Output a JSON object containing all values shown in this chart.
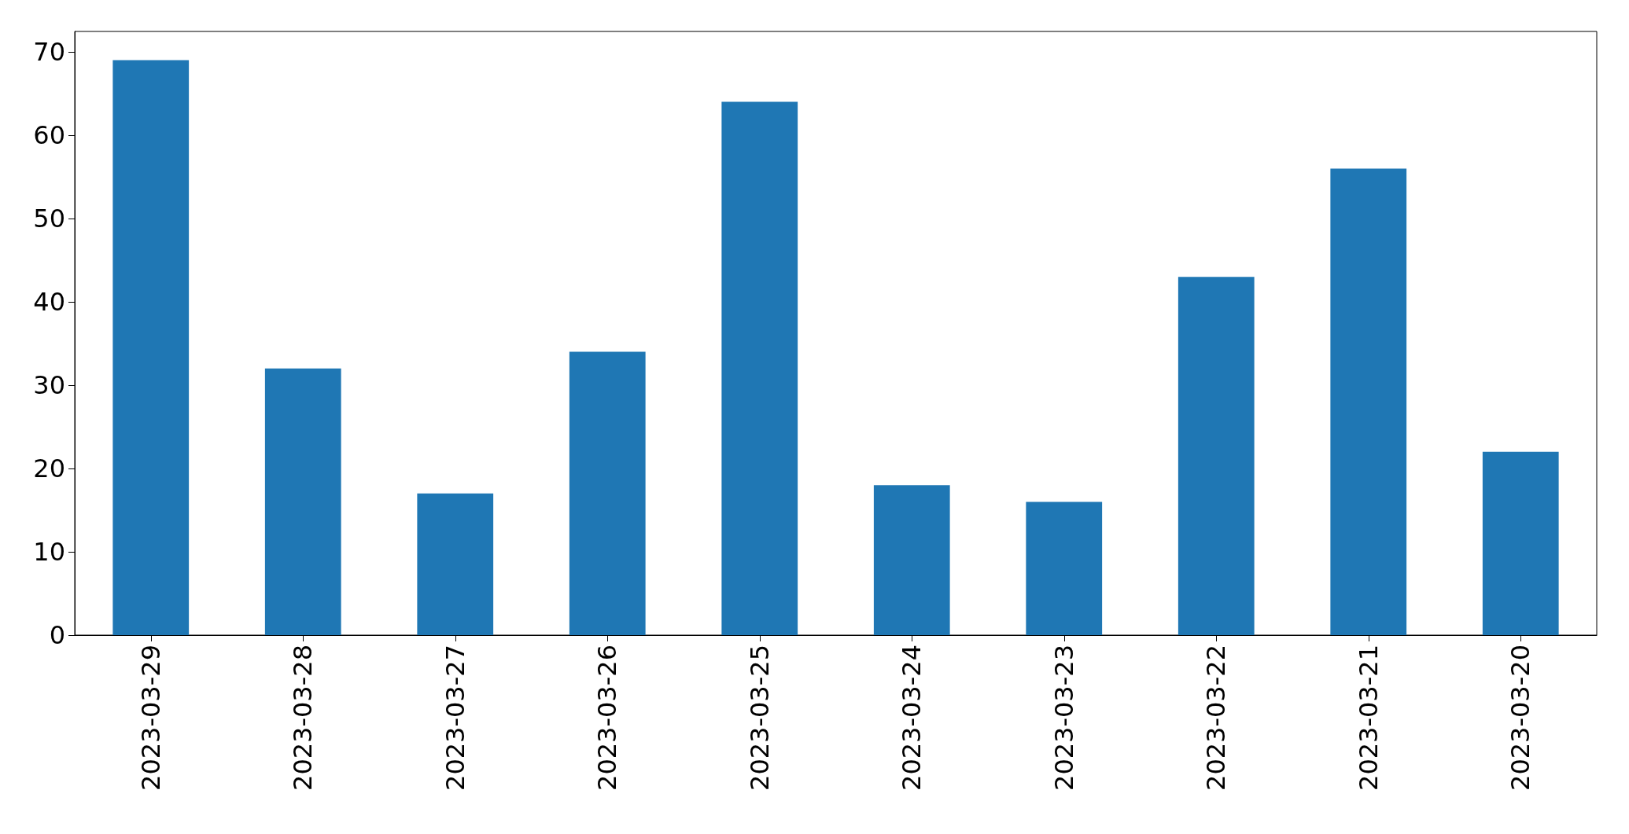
{
  "chart_data": {
    "type": "bar",
    "categories": [
      "2023-03-29",
      "2023-03-28",
      "2023-03-27",
      "2023-03-26",
      "2023-03-25",
      "2023-03-24",
      "2023-03-23",
      "2023-03-22",
      "2023-03-21",
      "2023-03-20"
    ],
    "values": [
      69,
      32,
      17,
      34,
      64,
      18,
      16,
      43,
      56,
      22
    ],
    "color": "#1f77b4",
    "ylim": [
      0,
      72.45
    ],
    "yticks": [
      0,
      10,
      20,
      30,
      40,
      50,
      60,
      70
    ],
    "grid": false
  }
}
